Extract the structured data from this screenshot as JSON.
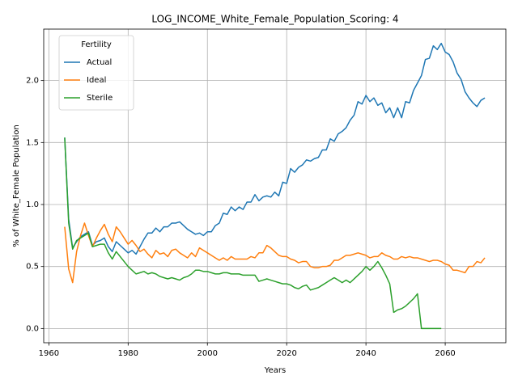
{
  "chart_data": {
    "type": "line",
    "title": "LOG_INCOME_White_Female_Population_Scoring: 4",
    "xlabel": "Years",
    "ylabel": "% of White_Female Population",
    "legend_title": "Fertility",
    "legend": "upper left",
    "grid": true,
    "xlim": [
      1958.7,
      2075.3
    ],
    "ylim": [
      -0.115,
      2.415
    ],
    "xticks": [
      1960,
      1980,
      2000,
      2020,
      2040,
      2060
    ],
    "yticks": [
      {
        "value": 0,
        "label": "0.0"
      },
      {
        "value": 0.5,
        "label": "0.5"
      },
      {
        "value": 1,
        "label": "1.0"
      },
      {
        "value": 1.5,
        "label": "1.5"
      },
      {
        "value": 2,
        "label": "2.0"
      }
    ],
    "x": [
      1964,
      1965,
      1966,
      1967,
      1968,
      1969,
      1970,
      1971,
      1972,
      1973,
      1974,
      1975,
      1976,
      1977,
      1978,
      1979,
      1980,
      1981,
      1982,
      1983,
      1984,
      1985,
      1986,
      1987,
      1988,
      1989,
      1990,
      1991,
      1992,
      1993,
      1994,
      1995,
      1996,
      1997,
      1998,
      1999,
      2000,
      2001,
      2002,
      2003,
      2004,
      2005,
      2006,
      2007,
      2008,
      2009,
      2010,
      2011,
      2012,
      2013,
      2014,
      2015,
      2016,
      2017,
      2018,
      2019,
      2020,
      2021,
      2022,
      2023,
      2024,
      2025,
      2026,
      2027,
      2028,
      2029,
      2030,
      2031,
      2032,
      2033,
      2034,
      2035,
      2036,
      2037,
      2038,
      2039,
      2040,
      2041,
      2042,
      2043,
      2044,
      2045,
      2046,
      2047,
      2048,
      2049,
      2050,
      2051,
      2052,
      2053,
      2054,
      2055,
      2056,
      2057,
      2058,
      2059,
      2060,
      2061,
      2062,
      2063,
      2064,
      2065,
      2066,
      2067,
      2068,
      2069,
      2070
    ],
    "series": [
      {
        "name": "Actual",
        "color": "#1f77b4",
        "values": [
          1.54,
          0.88,
          0.65,
          0.7,
          0.74,
          0.76,
          0.78,
          0.67,
          0.7,
          0.71,
          0.73,
          0.66,
          0.62,
          0.7,
          0.67,
          0.64,
          0.61,
          0.63,
          0.6,
          0.66,
          0.72,
          0.77,
          0.77,
          0.81,
          0.78,
          0.82,
          0.82,
          0.85,
          0.85,
          0.86,
          0.83,
          0.8,
          0.78,
          0.76,
          0.77,
          0.75,
          0.78,
          0.78,
          0.83,
          0.85,
          0.93,
          0.92,
          0.98,
          0.95,
          0.98,
          0.96,
          1.02,
          1.02,
          1.08,
          1.03,
          1.06,
          1.07,
          1.06,
          1.1,
          1.07,
          1.18,
          1.17,
          1.29,
          1.26,
          1.3,
          1.32,
          1.36,
          1.35,
          1.37,
          1.38,
          1.44,
          1.44,
          1.53,
          1.51,
          1.57,
          1.59,
          1.62,
          1.68,
          1.72,
          1.83,
          1.81,
          1.88,
          1.83,
          1.86,
          1.8,
          1.82,
          1.74,
          1.78,
          1.7,
          1.78,
          1.7,
          1.83,
          1.82,
          1.92,
          1.98,
          2.04,
          2.17,
          2.18,
          2.28,
          2.25,
          2.3,
          2.23,
          2.21,
          2.15,
          2.06,
          2.01,
          1.91,
          1.86,
          1.82,
          1.79,
          1.84,
          1.86
        ]
      },
      {
        "name": "Ideal",
        "color": "#ff7f0e",
        "values": [
          0.82,
          0.48,
          0.37,
          0.62,
          0.75,
          0.85,
          0.75,
          0.66,
          0.73,
          0.79,
          0.84,
          0.76,
          0.7,
          0.82,
          0.78,
          0.73,
          0.68,
          0.71,
          0.67,
          0.62,
          0.64,
          0.6,
          0.57,
          0.63,
          0.6,
          0.61,
          0.58,
          0.63,
          0.64,
          0.61,
          0.59,
          0.57,
          0.61,
          0.58,
          0.65,
          0.63,
          0.61,
          0.59,
          0.57,
          0.55,
          0.57,
          0.55,
          0.58,
          0.56,
          0.56,
          0.56,
          0.56,
          0.58,
          0.57,
          0.61,
          0.61,
          0.67,
          0.65,
          0.62,
          0.59,
          0.58,
          0.58,
          0.56,
          0.55,
          0.53,
          0.54,
          0.54,
          0.5,
          0.49,
          0.49,
          0.5,
          0.5,
          0.51,
          0.55,
          0.55,
          0.57,
          0.59,
          0.59,
          0.6,
          0.61,
          0.6,
          0.59,
          0.57,
          0.58,
          0.58,
          0.61,
          0.59,
          0.58,
          0.56,
          0.56,
          0.58,
          0.57,
          0.58,
          0.57,
          0.57,
          0.56,
          0.55,
          0.54,
          0.55,
          0.55,
          0.54,
          0.52,
          0.51,
          0.47,
          0.47,
          0.46,
          0.45,
          0.5,
          0.5,
          0.54,
          0.53,
          0.57
        ]
      },
      {
        "name": "Sterile",
        "color": "#2ca02c",
        "values": [
          1.54,
          0.85,
          0.64,
          0.71,
          0.73,
          0.75,
          0.77,
          0.66,
          0.67,
          0.68,
          0.68,
          0.61,
          0.56,
          0.62,
          0.58,
          0.54,
          0.5,
          0.47,
          0.44,
          0.45,
          0.46,
          0.44,
          0.45,
          0.44,
          0.42,
          0.41,
          0.4,
          0.41,
          0.4,
          0.39,
          0.41,
          0.42,
          0.44,
          0.47,
          0.47,
          0.46,
          0.46,
          0.45,
          0.44,
          0.44,
          0.45,
          0.45,
          0.44,
          0.44,
          0.44,
          0.43,
          0.43,
          0.43,
          0.43,
          0.38,
          0.39,
          0.4,
          0.39,
          0.38,
          0.37,
          0.36,
          0.36,
          0.35,
          0.33,
          0.32,
          0.34,
          0.35,
          0.31,
          0.32,
          0.33,
          0.35,
          0.37,
          0.39,
          0.41,
          0.39,
          0.37,
          0.39,
          0.37,
          0.4,
          0.43,
          0.46,
          0.5,
          0.47,
          0.5,
          0.54,
          0.49,
          0.43,
          0.36,
          0.13,
          0.15,
          0.16,
          0.18,
          0.21,
          0.24,
          0.28,
          0,
          0,
          0,
          0,
          0,
          0,
          null,
          null,
          null,
          null,
          null,
          null,
          null,
          null,
          null,
          null,
          null
        ]
      }
    ]
  }
}
